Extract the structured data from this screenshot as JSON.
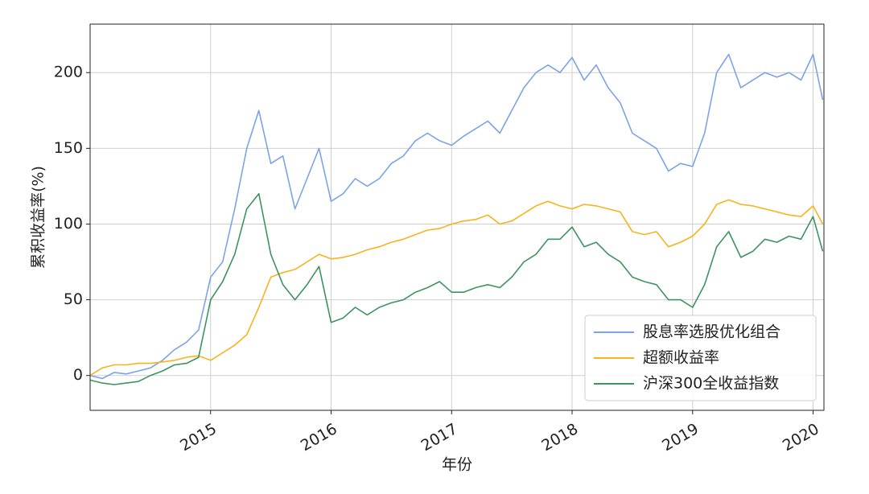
{
  "chart_data": {
    "type": "line",
    "x_label": "年份",
    "y_label": "累积收益率(%)",
    "x": [
      2014.0,
      2014.1,
      2014.2,
      2014.3,
      2014.4,
      2014.5,
      2014.6,
      2014.7,
      2014.8,
      2014.9,
      2015.0,
      2015.1,
      2015.2,
      2015.3,
      2015.4,
      2015.5,
      2015.6,
      2015.7,
      2015.8,
      2015.9,
      2016.0,
      2016.1,
      2016.2,
      2016.3,
      2016.4,
      2016.5,
      2016.6,
      2016.7,
      2016.8,
      2016.9,
      2017.0,
      2017.1,
      2017.2,
      2017.3,
      2017.4,
      2017.5,
      2017.6,
      2017.7,
      2017.8,
      2017.9,
      2018.0,
      2018.1,
      2018.2,
      2018.3,
      2018.4,
      2018.5,
      2018.6,
      2018.7,
      2018.8,
      2018.9,
      2019.0,
      2019.1,
      2019.2,
      2019.3,
      2019.4,
      2019.5,
      2019.6,
      2019.7,
      2019.8,
      2019.9,
      2020.0,
      2020.08
    ],
    "series": [
      {
        "name": "股息率选股优化组合",
        "color": "#7ba3e8",
        "values": [
          0,
          -2,
          2,
          1,
          3,
          5,
          10,
          17,
          22,
          30,
          65,
          75,
          110,
          150,
          175,
          140,
          145,
          110,
          130,
          150,
          115,
          120,
          130,
          125,
          130,
          140,
          145,
          155,
          160,
          155,
          152,
          158,
          163,
          168,
          160,
          175,
          190,
          200,
          205,
          200,
          210,
          195,
          205,
          190,
          180,
          160,
          155,
          150,
          135,
          140,
          138,
          160,
          200,
          212,
          190,
          195,
          200,
          197,
          200,
          195,
          212,
          182
        ]
      },
      {
        "name": "超额收益率",
        "color": "#f5b41e",
        "values": [
          0,
          5,
          7,
          7,
          8,
          8,
          9,
          10,
          12,
          13,
          10,
          15,
          20,
          27,
          45,
          65,
          68,
          70,
          75,
          80,
          77,
          78,
          80,
          83,
          85,
          88,
          90,
          93,
          96,
          97,
          100,
          102,
          103,
          106,
          100,
          102,
          107,
          112,
          115,
          112,
          110,
          113,
          112,
          110,
          108,
          95,
          93,
          95,
          85,
          88,
          92,
          100,
          113,
          116,
          113,
          112,
          110,
          108,
          106,
          105,
          112,
          100
        ]
      },
      {
        "name": "沪深300全收益指数",
        "color": "#3d9460",
        "values": [
          -3,
          -5,
          -6,
          -5,
          -4,
          0,
          3,
          7,
          8,
          12,
          50,
          62,
          80,
          110,
          120,
          80,
          60,
          50,
          60,
          72,
          35,
          38,
          45,
          40,
          45,
          48,
          50,
          55,
          58,
          62,
          55,
          55,
          58,
          60,
          58,
          65,
          75,
          80,
          90,
          90,
          98,
          85,
          88,
          80,
          75,
          65,
          62,
          60,
          50,
          50,
          45,
          60,
          85,
          95,
          78,
          82,
          90,
          88,
          92,
          90,
          105,
          82
        ]
      }
    ],
    "xlim": [
      2014.0,
      2020.09
    ],
    "xticks": [
      2015,
      2016,
      2017,
      2018,
      2019,
      2020
    ],
    "ylim": [
      -23,
      232
    ],
    "yticks": [
      0,
      50,
      100,
      150,
      200
    ],
    "grid": true,
    "legend": "lower right"
  }
}
